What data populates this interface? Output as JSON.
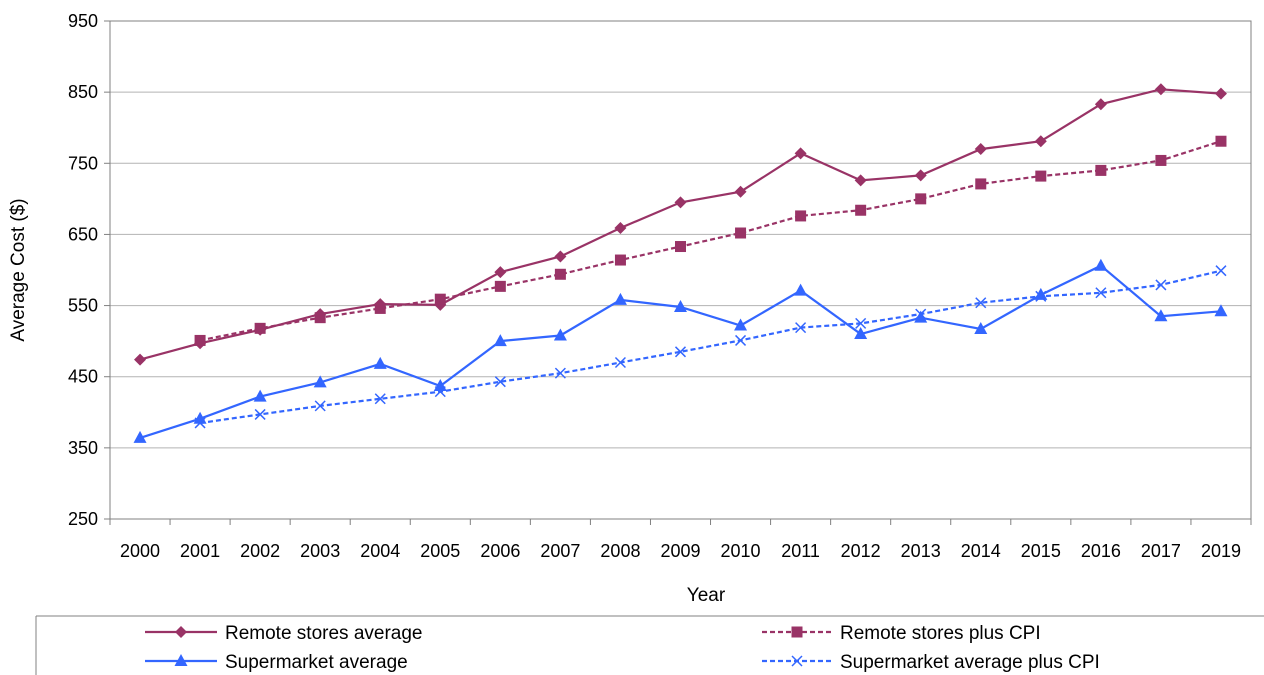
{
  "chart_data": {
    "type": "line",
    "title": "",
    "xlabel": "Year",
    "ylabel": "Average Cost ($)",
    "ylim": [
      250,
      950
    ],
    "yticks": [
      250,
      350,
      450,
      550,
      650,
      750,
      850,
      950
    ],
    "categories": [
      "2000",
      "2001",
      "2002",
      "2003",
      "2004",
      "2005",
      "2006",
      "2007",
      "2008",
      "2009",
      "2010",
      "2011",
      "2012",
      "2013",
      "2014",
      "2015",
      "2016",
      "2017",
      "2019"
    ],
    "grid": "horizontal",
    "legend_position": "bottom",
    "series": [
      {
        "name": "Remote stores average",
        "color": "#993366",
        "line_style": "solid",
        "marker": "diamond",
        "values": [
          474,
          497,
          516,
          538,
          552,
          551,
          597,
          619,
          659,
          695,
          710,
          764,
          726,
          733,
          770,
          781,
          833,
          854,
          848
        ]
      },
      {
        "name": "Remote stores plus CPI",
        "color": "#993366",
        "line_style": "dashed",
        "marker": "square",
        "values": [
          null,
          501,
          518,
          533,
          546,
          559,
          577,
          594,
          614,
          633,
          652,
          676,
          684,
          700,
          721,
          732,
          740,
          754,
          781
        ]
      },
      {
        "name": "Supermarket average",
        "color": "#3366ff",
        "line_style": "solid",
        "marker": "triangle",
        "values": [
          364,
          391,
          422,
          442,
          468,
          437,
          500,
          508,
          558,
          548,
          522,
          571,
          510,
          533,
          517,
          565,
          606,
          535,
          542
        ]
      },
      {
        "name": "Supermarket average plus CPI",
        "color": "#3366ff",
        "line_style": "dashed",
        "marker": "x",
        "values": [
          null,
          385,
          397,
          409,
          419,
          429,
          443,
          455,
          470,
          485,
          501,
          519,
          525,
          538,
          554,
          563,
          568,
          579,
          599
        ]
      }
    ]
  }
}
